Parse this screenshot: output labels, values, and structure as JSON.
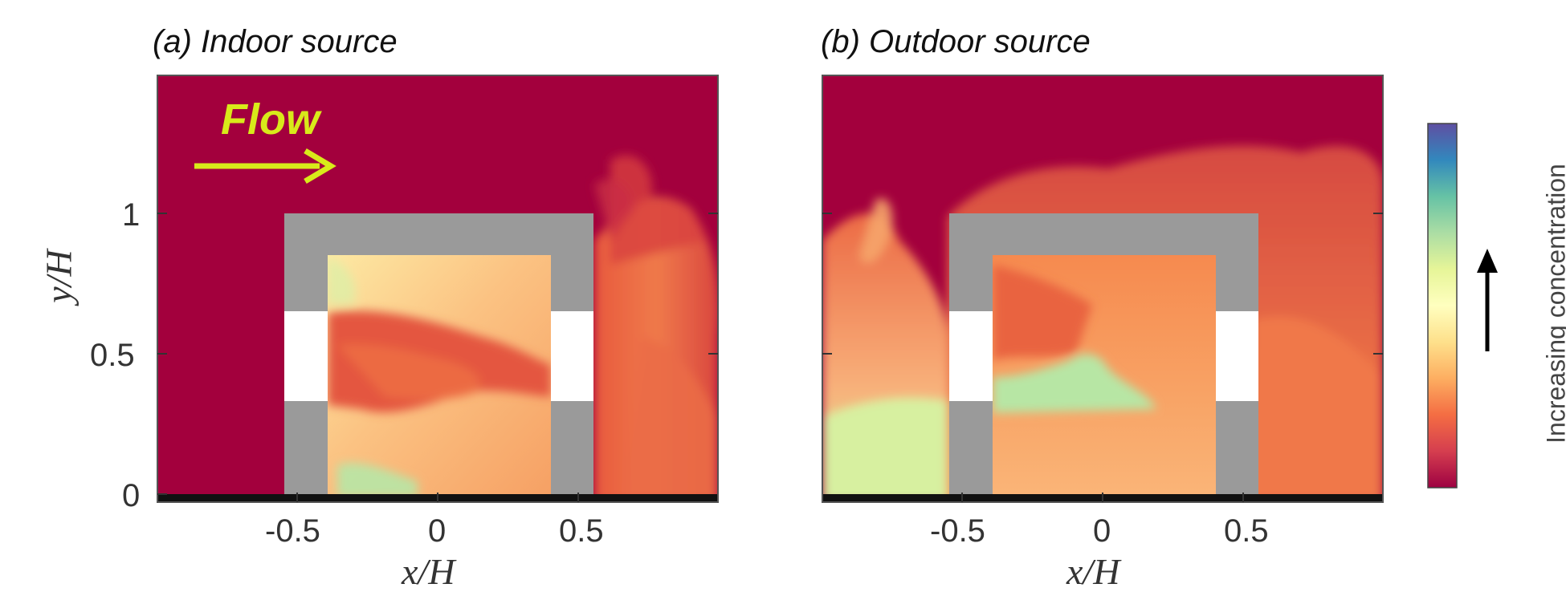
{
  "panels": [
    {
      "title": "(a) Indoor source"
    },
    {
      "title": "(b) Outdoor source"
    }
  ],
  "flow_label": "Flow",
  "axes": {
    "xlabel": "x/H",
    "ylabel": "y/H",
    "xticks": [
      "-0.5",
      "0",
      "0.5"
    ],
    "yticks": [
      "0",
      "0.5",
      "1"
    ]
  },
  "colorbar": {
    "label": "Increasing concentration",
    "colors": [
      "#9e0142",
      "#d53e4f",
      "#f46d43",
      "#fdae61",
      "#fee08b",
      "#ffffbf",
      "#e6f598",
      "#abdda4",
      "#66c2a5",
      "#3288bd",
      "#5e4fa2"
    ]
  },
  "colors": {
    "background_flow": "#a3003d",
    "wall": "#9a9a9a",
    "window": "#ffffff",
    "ground": "#111111",
    "flow_arrow": "#d8ea1a"
  }
}
